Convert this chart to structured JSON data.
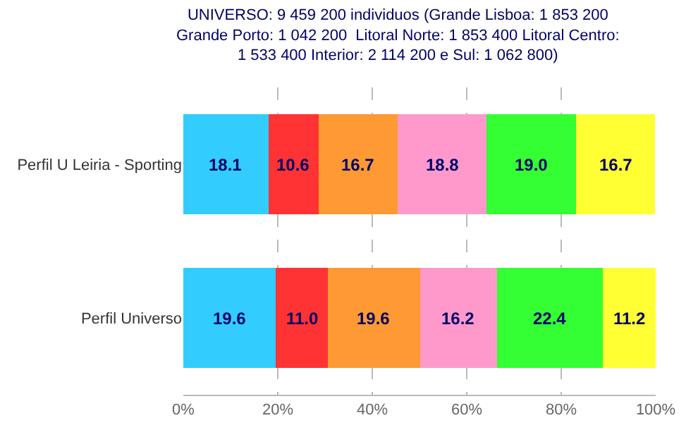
{
  "chart_data": {
    "type": "bar",
    "orientation": "horizontal",
    "stacked": true,
    "title": "UNIVERSO: 9 459 200 individuos (Grande Lisboa: 1 853 200\nGrande Porto: 1 042 200  Litoral Norte: 1 853 400 Litoral Centro:\n1 533 400 Interior: 2 114 200 e Sul: 1 062 800)",
    "categories": [
      "Perfil U Leiria - Sporting",
      "Perfil Universo"
    ],
    "series": [
      {
        "color": "#33ccff",
        "values": [
          18.1,
          19.6
        ],
        "value_labels": [
          "18.1",
          "19.6"
        ]
      },
      {
        "color": "#ff3333",
        "values": [
          10.6,
          11.0
        ],
        "value_labels": [
          "10.6",
          "11.0"
        ]
      },
      {
        "color": "#ff9933",
        "values": [
          16.7,
          19.6
        ],
        "value_labels": [
          "16.7",
          "19.6"
        ]
      },
      {
        "color": "#ff99cc",
        "values": [
          18.8,
          16.2
        ],
        "value_labels": [
          "18.8",
          "16.2"
        ]
      },
      {
        "color": "#33ff33",
        "values": [
          19.0,
          22.4
        ],
        "value_labels": [
          "19.0",
          "22.4"
        ]
      },
      {
        "color": "#ffff33",
        "values": [
          16.7,
          11.2
        ],
        "value_labels": [
          "16.7",
          "11.2"
        ]
      }
    ],
    "xlim": [
      0,
      100
    ],
    "xticks": [
      {
        "value": 0,
        "label": "0%"
      },
      {
        "value": 20,
        "label": "20%"
      },
      {
        "value": 40,
        "label": "40%"
      },
      {
        "value": 60,
        "label": "60%"
      },
      {
        "value": 80,
        "label": "80%"
      },
      {
        "value": 100,
        "label": "100%"
      }
    ],
    "grid": "x"
  }
}
